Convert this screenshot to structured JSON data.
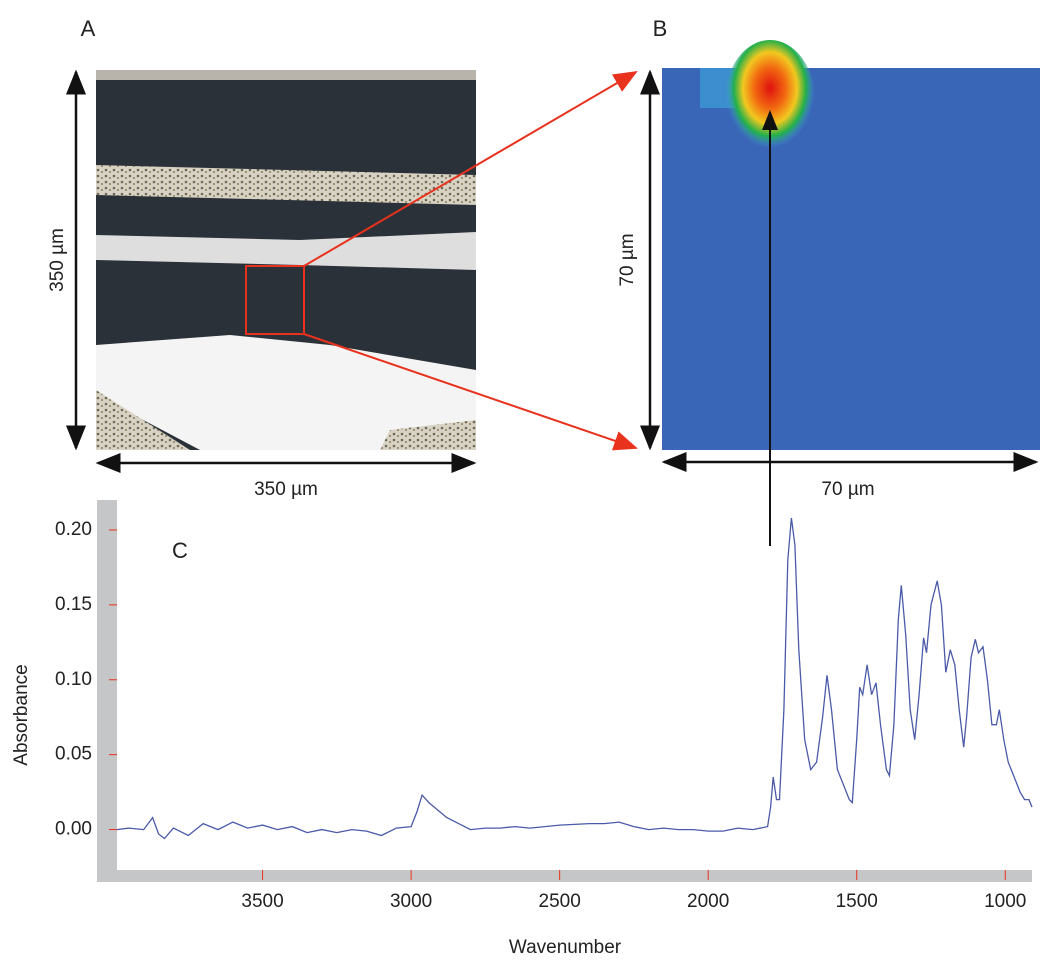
{
  "panels": {
    "a": {
      "label": "A",
      "height_label": "350 µm",
      "width_label": "350 µm"
    },
    "b": {
      "label": "B",
      "height_label": "70 µm",
      "width_label": "70 µm"
    }
  },
  "chart_data": {
    "type": "line",
    "panel_label": "C",
    "x_label": "Wavenumber",
    "y_label": "Absorbance",
    "x": [
      3990,
      3950,
      3900,
      3870,
      3850,
      3830,
      3800,
      3750,
      3700,
      3650,
      3600,
      3550,
      3500,
      3450,
      3400,
      3350,
      3300,
      3250,
      3200,
      3150,
      3100,
      3050,
      3000,
      2980,
      2963,
      2940,
      2910,
      2880,
      2850,
      2800,
      2750,
      2700,
      2650,
      2600,
      2550,
      2500,
      2400,
      2350,
      2300,
      2250,
      2200,
      2150,
      2100,
      2050,
      2000,
      1950,
      1900,
      1850,
      1800,
      1790,
      1781,
      1770,
      1760,
      1745,
      1732,
      1720,
      1708,
      1695,
      1675,
      1655,
      1635,
      1615,
      1600,
      1585,
      1565,
      1545,
      1525,
      1515,
      1500,
      1490,
      1480,
      1465,
      1450,
      1435,
      1420,
      1400,
      1390,
      1375,
      1360,
      1350,
      1335,
      1320,
      1305,
      1290,
      1275,
      1265,
      1250,
      1229,
      1215,
      1200,
      1185,
      1170,
      1155,
      1140,
      1130,
      1115,
      1101,
      1090,
      1075,
      1060,
      1045,
      1030,
      1020,
      1005,
      990,
      970,
      950,
      935,
      920,
      910
    ],
    "values": [
      0.0,
      0.001,
      0.0,
      0.008,
      -0.003,
      -0.006,
      0.001,
      -0.004,
      0.004,
      0.0,
      0.005,
      0.001,
      0.003,
      0.0,
      0.002,
      -0.002,
      0.0,
      -0.002,
      0.0,
      -0.001,
      -0.004,
      0.001,
      0.002,
      0.012,
      0.023,
      0.018,
      0.013,
      0.008,
      0.005,
      0.0,
      0.001,
      0.001,
      0.002,
      0.001,
      0.002,
      0.003,
      0.004,
      0.004,
      0.005,
      0.002,
      0.0,
      0.001,
      0.0,
      0.0,
      -0.001,
      -0.001,
      0.001,
      0.0,
      0.002,
      0.015,
      0.035,
      0.02,
      0.02,
      0.08,
      0.18,
      0.208,
      0.19,
      0.12,
      0.06,
      0.04,
      0.045,
      0.075,
      0.103,
      0.08,
      0.04,
      0.03,
      0.02,
      0.018,
      0.06,
      0.095,
      0.09,
      0.11,
      0.09,
      0.098,
      0.07,
      0.04,
      0.036,
      0.07,
      0.14,
      0.163,
      0.13,
      0.08,
      0.06,
      0.09,
      0.128,
      0.118,
      0.15,
      0.166,
      0.15,
      0.105,
      0.12,
      0.11,
      0.08,
      0.055,
      0.075,
      0.115,
      0.127,
      0.118,
      0.122,
      0.1,
      0.07,
      0.07,
      0.08,
      0.06,
      0.045,
      0.035,
      0.025,
      0.02,
      0.02,
      0.015
    ],
    "color": "#4a5aa8",
    "xlim": [
      3990,
      910
    ],
    "ylim": [
      -0.027,
      0.22
    ],
    "xticks": [
      3500,
      3000,
      2500,
      2000,
      1500,
      1000
    ],
    "yticks": [
      {
        "value": 0,
        "label": "0.00"
      },
      0.05,
      {
        "value": 0.1,
        "label": "0.10"
      },
      0.15,
      {
        "value": 0.2,
        "label": "0.20"
      }
    ]
  }
}
